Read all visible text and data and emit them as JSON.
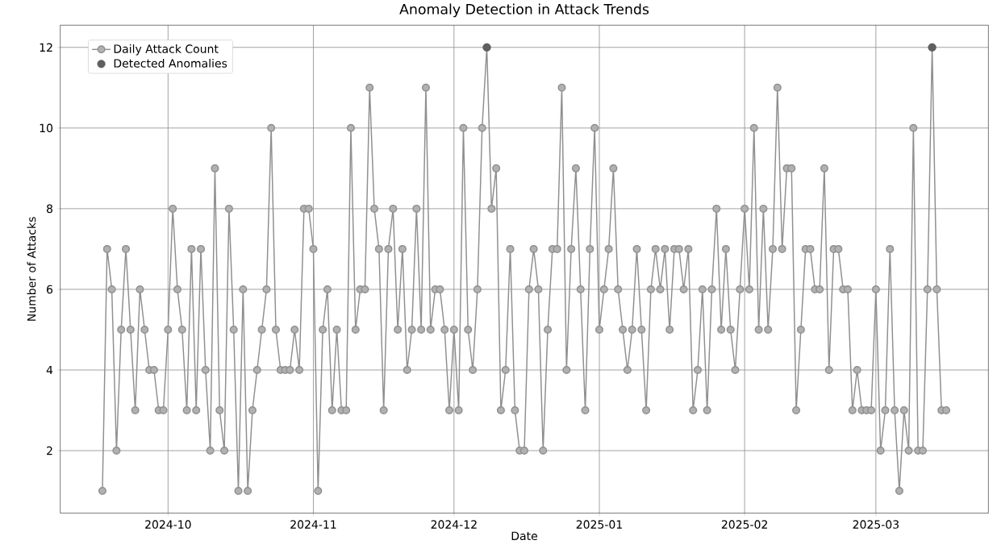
{
  "chart_data": {
    "type": "line",
    "title": "Anomaly Detection in Attack Trends",
    "xlabel": "Date",
    "ylabel": "Number of Attacks",
    "x": [
      "2024-09-17",
      "2024-09-18",
      "2024-09-19",
      "2024-09-20",
      "2024-09-21",
      "2024-09-22",
      "2024-09-23",
      "2024-09-24",
      "2024-09-25",
      "2024-09-26",
      "2024-09-27",
      "2024-09-28",
      "2024-09-29",
      "2024-09-30",
      "2024-10-01",
      "2024-10-02",
      "2024-10-03",
      "2024-10-04",
      "2024-10-05",
      "2024-10-06",
      "2024-10-07",
      "2024-10-08",
      "2024-10-09",
      "2024-10-10",
      "2024-10-11",
      "2024-10-12",
      "2024-10-13",
      "2024-10-14",
      "2024-10-15",
      "2024-10-16",
      "2024-10-17",
      "2024-10-18",
      "2024-10-19",
      "2024-10-20",
      "2024-10-21",
      "2024-10-22",
      "2024-10-23",
      "2024-10-24",
      "2024-10-25",
      "2024-10-26",
      "2024-10-27",
      "2024-10-28",
      "2024-10-29",
      "2024-10-30",
      "2024-10-31",
      "2024-11-01",
      "2024-11-02",
      "2024-11-03",
      "2024-11-04",
      "2024-11-05",
      "2024-11-06",
      "2024-11-07",
      "2024-11-08",
      "2024-11-09",
      "2024-11-10",
      "2024-11-11",
      "2024-11-12",
      "2024-11-13",
      "2024-11-14",
      "2024-11-15",
      "2024-11-16",
      "2024-11-17",
      "2024-11-18",
      "2024-11-19",
      "2024-11-20",
      "2024-11-21",
      "2024-11-22",
      "2024-11-23",
      "2024-11-24",
      "2024-11-25",
      "2024-11-26",
      "2024-11-27",
      "2024-11-28",
      "2024-11-29",
      "2024-11-30",
      "2024-12-01",
      "2024-12-02",
      "2024-12-03",
      "2024-12-04",
      "2024-12-05",
      "2024-12-06",
      "2024-12-07",
      "2024-12-08",
      "2024-12-09",
      "2024-12-10",
      "2024-12-11",
      "2024-12-12",
      "2024-12-13",
      "2024-12-14",
      "2024-12-15",
      "2024-12-16",
      "2024-12-17",
      "2024-12-18",
      "2024-12-19",
      "2024-12-20",
      "2024-12-21",
      "2024-12-22",
      "2024-12-23",
      "2024-12-24",
      "2024-12-25",
      "2024-12-26",
      "2024-12-27",
      "2024-12-28",
      "2024-12-29",
      "2024-12-30",
      "2024-12-31",
      "2025-01-01",
      "2025-01-02",
      "2025-01-03",
      "2025-01-04",
      "2025-01-05",
      "2025-01-06",
      "2025-01-07",
      "2025-01-08",
      "2025-01-09",
      "2025-01-10",
      "2025-01-11",
      "2025-01-12",
      "2025-01-13",
      "2025-01-14",
      "2025-01-15",
      "2025-01-16",
      "2025-01-17",
      "2025-01-18",
      "2025-01-19",
      "2025-01-20",
      "2025-01-21",
      "2025-01-22",
      "2025-01-23",
      "2025-01-24",
      "2025-01-25",
      "2025-01-26",
      "2025-01-27",
      "2025-01-28",
      "2025-01-29",
      "2025-01-30",
      "2025-01-31",
      "2025-02-01",
      "2025-02-02",
      "2025-02-03",
      "2025-02-04",
      "2025-02-05",
      "2025-02-06",
      "2025-02-07",
      "2025-02-08",
      "2025-02-09",
      "2025-02-10",
      "2025-02-11",
      "2025-02-12",
      "2025-02-13",
      "2025-02-14",
      "2025-02-15",
      "2025-02-16",
      "2025-02-17",
      "2025-02-18",
      "2025-02-19",
      "2025-02-20",
      "2025-02-21",
      "2025-02-22",
      "2025-02-23",
      "2025-02-24",
      "2025-02-25",
      "2025-02-26",
      "2025-02-27",
      "2025-02-28",
      "2025-03-01",
      "2025-03-02",
      "2025-03-03",
      "2025-03-04",
      "2025-03-05",
      "2025-03-06",
      "2025-03-07",
      "2025-03-08",
      "2025-03-09",
      "2025-03-10",
      "2025-03-11",
      "2025-03-12",
      "2025-03-13",
      "2025-03-14",
      "2025-03-15",
      "2025-03-16"
    ],
    "series": [
      {
        "name": "Daily Attack Count",
        "color": "#8f8f8f",
        "values": [
          1,
          7,
          6,
          2,
          5,
          7,
          5,
          3,
          6,
          5,
          4,
          4,
          3,
          3,
          5,
          8,
          6,
          5,
          3,
          7,
          3,
          7,
          4,
          2,
          9,
          3,
          2,
          8,
          5,
          1,
          6,
          1,
          3,
          4,
          5,
          6,
          10,
          5,
          4,
          4,
          4,
          5,
          4,
          8,
          8,
          7,
          1,
          5,
          6,
          3,
          5,
          3,
          3,
          10,
          5,
          6,
          6,
          11,
          8,
          7,
          3,
          7,
          8,
          5,
          7,
          4,
          5,
          8,
          5,
          11,
          5,
          6,
          6,
          5,
          3,
          5,
          3,
          10,
          5,
          4,
          6,
          10,
          12,
          8,
          9,
          3,
          4,
          7,
          3,
          2,
          2,
          6,
          7,
          6,
          2,
          5,
          7,
          7,
          11,
          4,
          7,
          9,
          6,
          3,
          7,
          10,
          5,
          6,
          7,
          9,
          6,
          5,
          4,
          5,
          7,
          5,
          3,
          6,
          7,
          6,
          7,
          5,
          7,
          7,
          6,
          7,
          3,
          4,
          6,
          3,
          6,
          8,
          5,
          7,
          5,
          4,
          6,
          8,
          6,
          10,
          5,
          8,
          5,
          7,
          11,
          7,
          9,
          9,
          3,
          5,
          7,
          7,
          6,
          6,
          9,
          4,
          7,
          7,
          6,
          6,
          3,
          4,
          3,
          3,
          3,
          6,
          2,
          3,
          7,
          3,
          1,
          3,
          2,
          10,
          2,
          2,
          6,
          12,
          6,
          3,
          3
        ]
      },
      {
        "name": "Detected Anomalies",
        "type": "scatter",
        "color": "#5f5f5f",
        "x": [
          "2024-12-08",
          "2025-03-13"
        ],
        "values": [
          12,
          12
        ]
      }
    ],
    "xlim": [
      "2024-09-08",
      "2025-03-25"
    ],
    "ylim": [
      0.45,
      12.55
    ],
    "xticks": [
      {
        "value": "2024-10-01",
        "label": "2024-10"
      },
      {
        "value": "2024-11-01",
        "label": "2024-11"
      },
      {
        "value": "2024-12-01",
        "label": "2024-12"
      },
      {
        "value": "2025-01-01",
        "label": "2025-01"
      },
      {
        "value": "2025-02-01",
        "label": "2025-02"
      },
      {
        "value": "2025-03-01",
        "label": "2025-03"
      }
    ],
    "yticks": [
      2,
      4,
      6,
      8,
      10,
      12
    ],
    "grid": true,
    "legend": "top left",
    "marker": "circle",
    "line_style": "solid"
  }
}
